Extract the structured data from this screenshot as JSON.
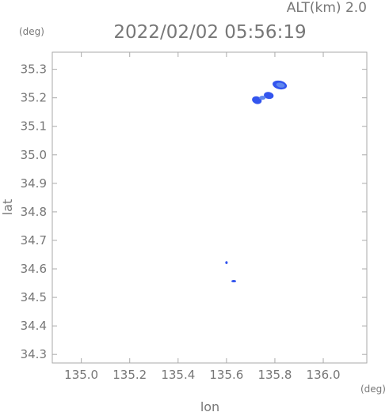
{
  "header": {
    "altitude_label": "ALT(km) 2.0",
    "timestamp": "2022/02/02 05:56:19",
    "lat_unit": "(deg)",
    "lon_unit": "(deg)"
  },
  "colors": {
    "frame": "#aaaaaa",
    "text": "#777777",
    "echo_dark": "#3355ee",
    "echo_light": "#5f87ee"
  },
  "chart_data": {
    "type": "scatter",
    "title": "",
    "xlabel": "lon",
    "ylabel": "lat",
    "xlim": [
      134.88,
      136.18
    ],
    "ylim": [
      34.27,
      35.36
    ],
    "xticks": [
      "135.0",
      "135.2",
      "135.4",
      "135.6",
      "135.8",
      "136.0"
    ],
    "yticks": [
      "34.3",
      "34.4",
      "34.5",
      "34.6",
      "34.7",
      "34.8",
      "34.9",
      "35.0",
      "35.1",
      "35.2",
      "35.3"
    ],
    "grid": false,
    "echo_cells": [
      {
        "name": "cell-ne",
        "lon": 135.82,
        "lat": 35.245,
        "size": [
          0.06,
          0.03
        ]
      },
      {
        "name": "cell-n",
        "lon": 135.755,
        "lat": 35.2,
        "size": [
          0.09,
          0.035
        ]
      },
      {
        "name": "cell-s1",
        "lon": 135.6,
        "lat": 34.622,
        "size": [
          0.01,
          0.01
        ]
      },
      {
        "name": "cell-s2",
        "lon": 135.63,
        "lat": 34.557,
        "size": [
          0.02,
          0.008
        ]
      }
    ]
  }
}
